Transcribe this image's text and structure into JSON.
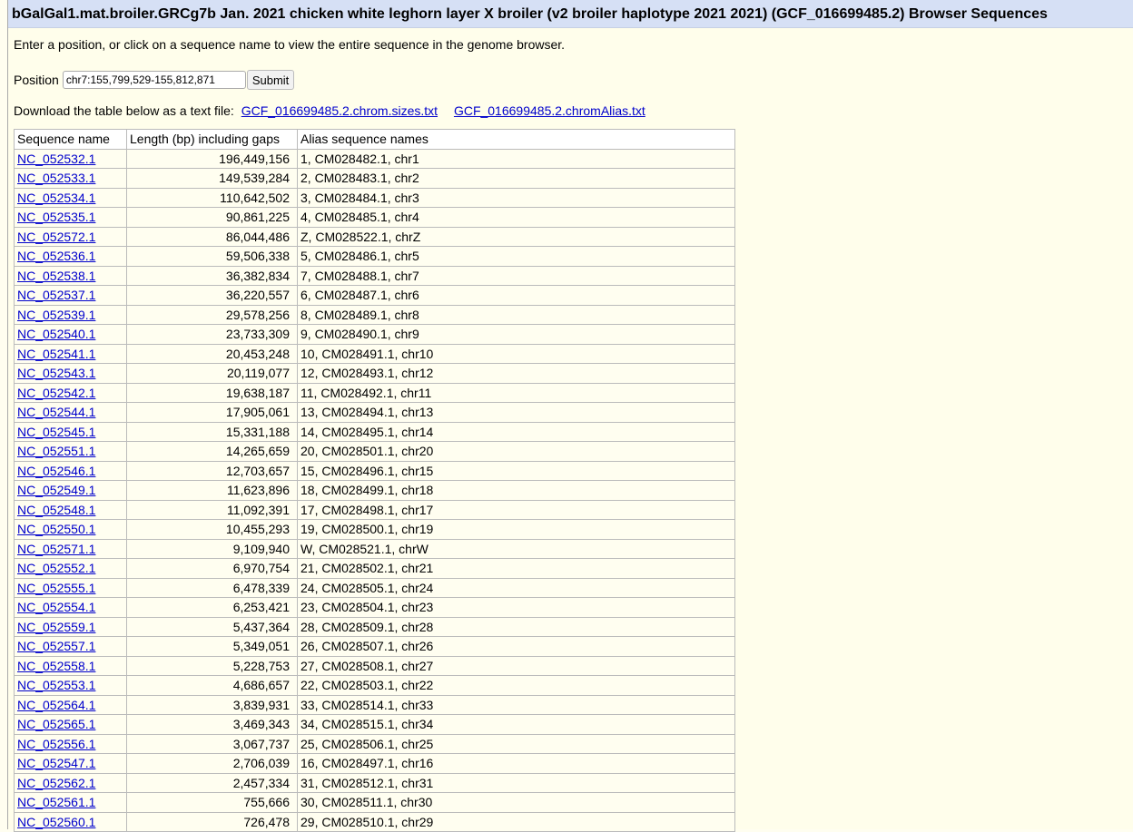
{
  "title": "bGalGal1.mat.broiler.GRCg7b Jan. 2021 chicken white leghorn layer X broiler (v2 broiler haplotype 2021 2021) (GCF_016699485.2) Browser Sequences",
  "intro": "Enter a position, or click on a sequence name to view the entire sequence in the genome browser.",
  "position": {
    "label": "Position",
    "value": "chr7:155,799,529-155,812,871",
    "submit": "Submit"
  },
  "download": {
    "label": "Download the table below as a text file:",
    "links": [
      "GCF_016699485.2.chrom.sizes.txt",
      "GCF_016699485.2.chromAlias.txt"
    ]
  },
  "table": {
    "headers": [
      "Sequence name",
      "Length (bp) including gaps",
      "Alias sequence names"
    ],
    "rows": [
      [
        "NC_052532.1",
        "196,449,156",
        "1, CM028482.1, chr1"
      ],
      [
        "NC_052533.1",
        "149,539,284",
        "2, CM028483.1, chr2"
      ],
      [
        "NC_052534.1",
        "110,642,502",
        "3, CM028484.1, chr3"
      ],
      [
        "NC_052535.1",
        "90,861,225",
        "4, CM028485.1, chr4"
      ],
      [
        "NC_052572.1",
        "86,044,486",
        "Z, CM028522.1, chrZ"
      ],
      [
        "NC_052536.1",
        "59,506,338",
        "5, CM028486.1, chr5"
      ],
      [
        "NC_052538.1",
        "36,382,834",
        "7, CM028488.1, chr7"
      ],
      [
        "NC_052537.1",
        "36,220,557",
        "6, CM028487.1, chr6"
      ],
      [
        "NC_052539.1",
        "29,578,256",
        "8, CM028489.1, chr8"
      ],
      [
        "NC_052540.1",
        "23,733,309",
        "9, CM028490.1, chr9"
      ],
      [
        "NC_052541.1",
        "20,453,248",
        "10, CM028491.1, chr10"
      ],
      [
        "NC_052543.1",
        "20,119,077",
        "12, CM028493.1, chr12"
      ],
      [
        "NC_052542.1",
        "19,638,187",
        "11, CM028492.1, chr11"
      ],
      [
        "NC_052544.1",
        "17,905,061",
        "13, CM028494.1, chr13"
      ],
      [
        "NC_052545.1",
        "15,331,188",
        "14, CM028495.1, chr14"
      ],
      [
        "NC_052551.1",
        "14,265,659",
        "20, CM028501.1, chr20"
      ],
      [
        "NC_052546.1",
        "12,703,657",
        "15, CM028496.1, chr15"
      ],
      [
        "NC_052549.1",
        "11,623,896",
        "18, CM028499.1, chr18"
      ],
      [
        "NC_052548.1",
        "11,092,391",
        "17, CM028498.1, chr17"
      ],
      [
        "NC_052550.1",
        "10,455,293",
        "19, CM028500.1, chr19"
      ],
      [
        "NC_052571.1",
        "9,109,940",
        "W, CM028521.1, chrW"
      ],
      [
        "NC_052552.1",
        "6,970,754",
        "21, CM028502.1, chr21"
      ],
      [
        "NC_052555.1",
        "6,478,339",
        "24, CM028505.1, chr24"
      ],
      [
        "NC_052554.1",
        "6,253,421",
        "23, CM028504.1, chr23"
      ],
      [
        "NC_052559.1",
        "5,437,364",
        "28, CM028509.1, chr28"
      ],
      [
        "NC_052557.1",
        "5,349,051",
        "26, CM028507.1, chr26"
      ],
      [
        "NC_052558.1",
        "5,228,753",
        "27, CM028508.1, chr27"
      ],
      [
        "NC_052553.1",
        "4,686,657",
        "22, CM028503.1, chr22"
      ],
      [
        "NC_052564.1",
        "3,839,931",
        "33, CM028514.1, chr33"
      ],
      [
        "NC_052565.1",
        "3,469,343",
        "34, CM028515.1, chr34"
      ],
      [
        "NC_052556.1",
        "3,067,737",
        "25, CM028506.1, chr25"
      ],
      [
        "NC_052547.1",
        "2,706,039",
        "16, CM028497.1, chr16"
      ],
      [
        "NC_052562.1",
        "2,457,334",
        "31, CM028512.1, chr31"
      ],
      [
        "NC_052561.1",
        "755,666",
        "30, CM028511.1, chr30"
      ],
      [
        "NC_052560.1",
        "726,478",
        "29, CM028510.1, chr29"
      ]
    ]
  }
}
